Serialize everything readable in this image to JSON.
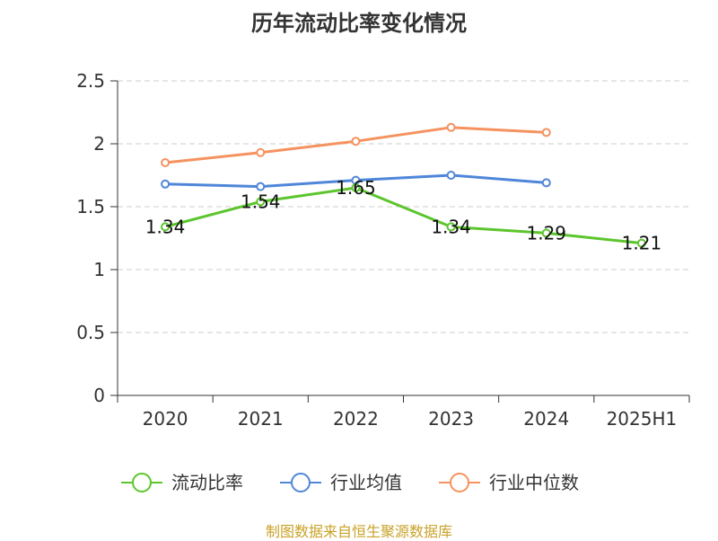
{
  "title": "历年流动比率变化情况",
  "source": "制图数据来自恒生聚源数据库",
  "chart_data": {
    "type": "line",
    "title": "历年流动比率变化情况",
    "categories": [
      "2020",
      "2021",
      "2022",
      "2023",
      "2024",
      "2025H1"
    ],
    "ylim": [
      0,
      2.5
    ],
    "yticks": [
      "0",
      "0.5",
      "1",
      "1.5",
      "2",
      "2.5"
    ],
    "grid": true,
    "legend": "bottom",
    "series": [
      {
        "name": "流动比率",
        "color": "#5cc52d",
        "values": [
          1.34,
          1.54,
          1.65,
          1.34,
          1.29,
          1.21
        ],
        "labels": [
          "1.34",
          "1.54",
          "1.65",
          "1.34",
          "1.29",
          "1.21"
        ]
      },
      {
        "name": "行业均值",
        "color": "#4f86d9",
        "values": [
          1.68,
          1.66,
          1.71,
          1.75,
          1.69,
          null
        ]
      },
      {
        "name": "行业中位数",
        "color": "#f5925f",
        "values": [
          1.85,
          1.93,
          2.02,
          2.13,
          2.09,
          null
        ]
      }
    ]
  }
}
